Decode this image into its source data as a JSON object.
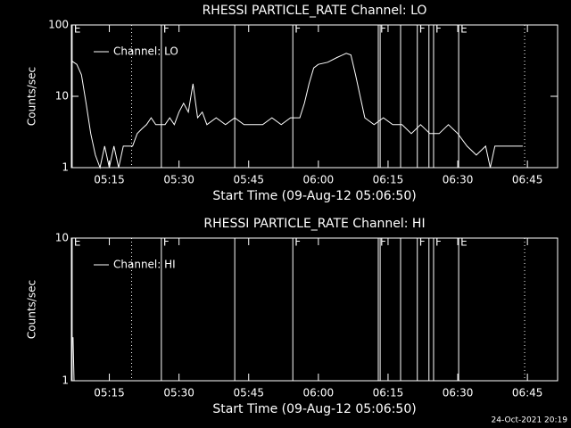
{
  "chart_data": [
    {
      "type": "line",
      "title": "RHESSI PARTICLE_RATE Channel: LO",
      "xlabel": "Start Time (09-Aug-12 05:06:50)",
      "ylabel": "Counts/sec",
      "log_y": true,
      "ylim": [
        1,
        100
      ],
      "yticks": [
        1,
        10,
        100
      ],
      "xlim": [
        6.83,
        111.5
      ],
      "xticks": [
        {
          "value": 15,
          "label": "05:15"
        },
        {
          "value": 30,
          "label": "05:30"
        },
        {
          "value": 45,
          "label": "05:45"
        },
        {
          "value": 60,
          "label": "06:00"
        },
        {
          "value": 75,
          "label": "06:15"
        },
        {
          "value": 90,
          "label": "06:30"
        },
        {
          "value": 105,
          "label": "06:45"
        }
      ],
      "x": [
        7,
        8,
        9,
        10,
        11,
        12,
        13,
        14,
        15,
        16,
        17,
        18,
        20,
        21,
        22,
        23,
        24,
        25,
        26,
        27,
        28,
        29,
        30,
        31,
        32,
        33,
        34,
        35,
        36,
        38,
        40,
        42,
        44,
        46,
        48,
        50,
        52,
        54,
        56,
        57,
        58,
        59,
        60,
        62,
        64,
        66,
        67,
        68,
        69,
        70,
        72,
        74,
        76,
        78,
        80,
        82,
        84,
        86,
        88,
        90,
        92,
        94,
        96,
        97,
        98,
        100,
        104
      ],
      "series": [
        {
          "name": "Channel: LO",
          "color": "#ffffff",
          "values": [
            31,
            28,
            20,
            8,
            3,
            1.5,
            1,
            2,
            1,
            2,
            1,
            2,
            2,
            3,
            3.5,
            4,
            5,
            4,
            4,
            4,
            5,
            4,
            6,
            8,
            6,
            15,
            5,
            6,
            4,
            5,
            4,
            5,
            4,
            4,
            4,
            5,
            4,
            5,
            5,
            8,
            15,
            25,
            28,
            30,
            35,
            40,
            38,
            20,
            10,
            5,
            4,
            5,
            4,
            4,
            3,
            4,
            3,
            3,
            4,
            3,
            2,
            1.5,
            2,
            1,
            2,
            2,
            2
          ]
        }
      ],
      "markers": [
        {
          "x": 7,
          "label": "E",
          "style": "solid"
        },
        {
          "x": 19.8,
          "style": "dotted"
        },
        {
          "x": 26.2,
          "label": "F",
          "style": "solid"
        },
        {
          "x": 42,
          "style": "solid"
        },
        {
          "x": 54.5,
          "label": "F",
          "style": "solid"
        },
        {
          "x": 72.9,
          "label": "F",
          "style": "solid"
        },
        {
          "x": 73.3,
          "style": "solid"
        },
        {
          "x": 77.7,
          "style": "solid"
        },
        {
          "x": 81.3,
          "label": "F",
          "style": "solid"
        },
        {
          "x": 83.8,
          "style": "solid"
        },
        {
          "x": 84.8,
          "label": "F",
          "style": "solid"
        },
        {
          "x": 90.2,
          "label": "E",
          "style": "solid"
        },
        {
          "x": 104.4,
          "style": "dotted"
        }
      ]
    },
    {
      "type": "line",
      "title": "RHESSI PARTICLE_RATE Channel: HI",
      "xlabel": "Start Time (09-Aug-12 05:06:50)",
      "ylabel": "Counts/sec",
      "log_y": true,
      "ylim": [
        1,
        10
      ],
      "yticks": [
        1,
        10
      ],
      "xlim": [
        6.83,
        111.5
      ],
      "xticks": [
        {
          "value": 15,
          "label": "05:15"
        },
        {
          "value": 30,
          "label": "05:30"
        },
        {
          "value": 45,
          "label": "05:45"
        },
        {
          "value": 60,
          "label": "06:00"
        },
        {
          "value": 75,
          "label": "06:15"
        },
        {
          "value": 90,
          "label": "06:30"
        },
        {
          "value": 105,
          "label": "06:45"
        }
      ],
      "x": [
        7,
        7.2,
        7.4
      ],
      "series": [
        {
          "name": "Channel: HI",
          "color": "#ffffff",
          "values": [
            2,
            2,
            1
          ]
        }
      ],
      "markers": [
        {
          "x": 7,
          "label": "E",
          "style": "solid"
        },
        {
          "x": 19.8,
          "style": "dotted"
        },
        {
          "x": 26.2,
          "label": "F",
          "style": "solid"
        },
        {
          "x": 42,
          "style": "solid"
        },
        {
          "x": 54.5,
          "label": "F",
          "style": "solid"
        },
        {
          "x": 72.9,
          "label": "F",
          "style": "solid"
        },
        {
          "x": 73.3,
          "style": "solid"
        },
        {
          "x": 77.7,
          "style": "solid"
        },
        {
          "x": 81.3,
          "label": "F",
          "style": "solid"
        },
        {
          "x": 83.8,
          "style": "solid"
        },
        {
          "x": 84.8,
          "label": "F",
          "style": "solid"
        },
        {
          "x": 90.2,
          "label": "E",
          "style": "solid"
        },
        {
          "x": 104.4,
          "style": "dotted"
        }
      ]
    }
  ],
  "footer": "24-Oct-2021 20:19"
}
